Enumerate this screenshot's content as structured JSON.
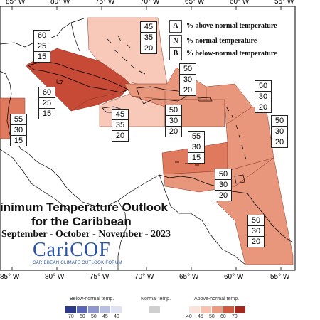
{
  "axis_top": [
    "85° W",
    "80° W",
    "75° W",
    "70° W",
    "65° W",
    "60° W",
    "55° W"
  ],
  "axis_bottom": [
    "85° W",
    "80° W",
    "75° W",
    "70° W",
    "65° W",
    "60° W",
    "55° W"
  ],
  "legend": [
    {
      "key": "A",
      "text": "% above-normal temperature"
    },
    {
      "key": "N",
      "text": "% normal temperature"
    },
    {
      "key": "B",
      "text": "% below-normal temperature"
    }
  ],
  "title_line1": "inimum Temperature Outlook",
  "title_line2": "for the Caribbean",
  "subtitle": "September - October - November - 2023",
  "logo_text": "CariCOF",
  "logo_subtext": "CARIBBEAN CLIMATE OUTLOOK FORUM",
  "forecasts": [
    {
      "region": "bahamas",
      "above": "45",
      "normal": "35",
      "below": "20",
      "color": "#f8c8b8"
    },
    {
      "region": "cuba-west",
      "above": "60",
      "normal": "25",
      "below": "15",
      "color": "#c64a35"
    },
    {
      "region": "cuba-south",
      "above": "60",
      "normal": "25",
      "below": "15",
      "color": "#c64a35"
    },
    {
      "region": "belize",
      "above": "55",
      "normal": "30",
      "below": "15",
      "color": "#df7a5e"
    },
    {
      "region": "jamaica",
      "above": "45",
      "normal": "35",
      "below": "20",
      "color": "#f8c8b8"
    },
    {
      "region": "hispaniola-north",
      "above": "50",
      "normal": "30",
      "below": "20",
      "color": "#e8967c"
    },
    {
      "region": "hispaniola-south",
      "above": "50",
      "normal": "30",
      "below": "20",
      "color": "#e8967c"
    },
    {
      "region": "leewards",
      "above": "50",
      "normal": "30",
      "below": "20",
      "color": "#e8967c"
    },
    {
      "region": "windwards",
      "above": "50",
      "normal": "30",
      "below": "20",
      "color": "#e8967c"
    },
    {
      "region": "abc-islands",
      "above": "55",
      "normal": "30",
      "below": "15",
      "color": "#df7a5e"
    },
    {
      "region": "trinidad",
      "above": "50",
      "normal": "30",
      "below": "20",
      "color": "#e8967c"
    },
    {
      "region": "guianas",
      "above": "50",
      "normal": "30",
      "below": "20",
      "color": "#e8967c"
    }
  ],
  "colorbar": {
    "below_label": "Below-normal temp.",
    "normal_label": "Normal temp.",
    "above_label": "Above-normal temp.",
    "below_ticks": [
      "70",
      "60",
      "50",
      "45",
      "40"
    ],
    "above_ticks": [
      "40",
      "45",
      "50",
      "60",
      "70"
    ],
    "below_colors": [
      "#2b3a8a",
      "#5a67b8",
      "#8e97cf",
      "#b9bfe2",
      "#dfe2f3"
    ],
    "normal_color": "#cfcfcf",
    "above_colors": [
      "#fbe3da",
      "#f7c3b0",
      "#ec9a80",
      "#d4583e",
      "#a5261a"
    ]
  }
}
